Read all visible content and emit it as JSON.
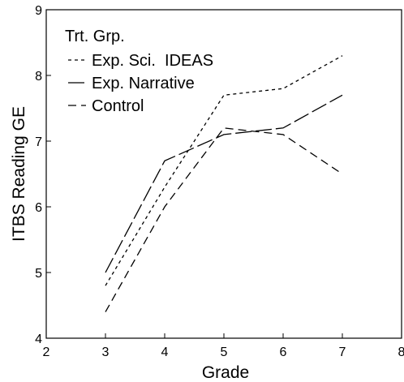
{
  "chart_data": {
    "type": "line",
    "xlabel": "Grade",
    "ylabel": "ITBS Reading GE",
    "xlim": [
      2,
      8
    ],
    "ylim": [
      4,
      9
    ],
    "xticks": [
      "2",
      "3",
      "4",
      "5",
      "6",
      "7",
      "8"
    ],
    "yticks": [
      "4",
      "5",
      "6",
      "7",
      "8",
      "9"
    ],
    "grid": false,
    "legend": {
      "title": "Trt. Grp.",
      "position": "top-left"
    },
    "series": [
      {
        "name": "Exp. Sci.  IDEAS",
        "dash": "short-dash",
        "x": [
          3,
          4,
          5,
          6,
          7
        ],
        "y": [
          4.8,
          6.3,
          7.7,
          7.8,
          8.3
        ]
      },
      {
        "name": "Exp. Narrative",
        "dash": "long-dash",
        "x": [
          3,
          4,
          5,
          6,
          7
        ],
        "y": [
          5.0,
          6.7,
          7.1,
          7.2,
          7.7
        ]
      },
      {
        "name": "Control",
        "dash": "medium-dash",
        "x": [
          3,
          4,
          5,
          6,
          7
        ],
        "y": [
          4.4,
          6.0,
          7.2,
          7.1,
          6.5
        ]
      }
    ]
  }
}
